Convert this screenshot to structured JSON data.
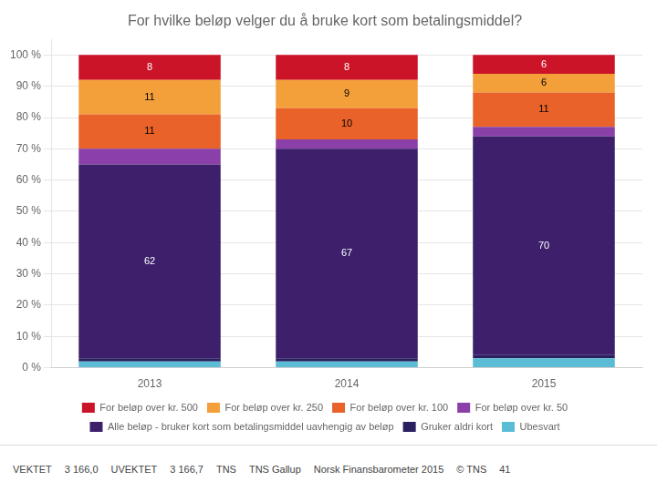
{
  "chart_data": {
    "type": "bar",
    "title": "For hvilke beløp velger du å bruke kort som betalingsmiddel?",
    "categories": [
      "2013",
      "2014",
      "2015"
    ],
    "series": [
      {
        "name": "For beløp over kr. 500",
        "color": "#cc1429",
        "values": [
          8,
          8,
          6
        ],
        "data_labels": true
      },
      {
        "name": "For beløp over kr. 250",
        "color": "#f4a03a",
        "values": [
          11,
          9,
          6
        ],
        "data_labels": true
      },
      {
        "name": "For beløp over kr. 100",
        "color": "#e8622a",
        "values": [
          11,
          10,
          11
        ],
        "data_labels": true
      },
      {
        "name": "For beløp over kr. 50",
        "color": "#8b3fa8",
        "values": [
          5,
          3,
          3
        ],
        "data_labels": false
      },
      {
        "name": "Alle beløp - bruker kort som betalingsmiddel uavhengig av beløp",
        "color": "#3d1f6b",
        "values": [
          62,
          67,
          70
        ],
        "data_labels": true
      },
      {
        "name": "Gruker aldri kort",
        "color": "#2a2060",
        "values": [
          1,
          1,
          1
        ],
        "data_labels": false
      },
      {
        "name": "Ubesvart",
        "color": "#5bbcd6",
        "values": [
          2,
          2,
          3
        ],
        "data_labels": false
      }
    ],
    "stacked": true,
    "ylim": [
      0,
      105
    ],
    "yticks": [
      {
        "value": 0,
        "label": "0 %"
      },
      {
        "value": 10,
        "label": "10 %"
      },
      {
        "value": 20,
        "label": "20 %"
      },
      {
        "value": 30,
        "label": "30 %"
      },
      {
        "value": 40,
        "label": "40 %"
      },
      {
        "value": 50,
        "label": "50 %"
      },
      {
        "value": 60,
        "label": "60 %"
      },
      {
        "value": 70,
        "label": "70 %"
      },
      {
        "value": 80,
        "label": "80 %"
      },
      {
        "value": 90,
        "label": "90 %"
      },
      {
        "value": 100,
        "label": "100 %"
      }
    ],
    "grid": true,
    "legend": "bottom",
    "annotations": [
      "VEKTET",
      "3 166,0",
      "UVEKTET",
      "3 166,7",
      "TNS",
      "TNS Gallup",
      "Norsk Finansbarometer 2015",
      "© TNS",
      "41"
    ]
  }
}
